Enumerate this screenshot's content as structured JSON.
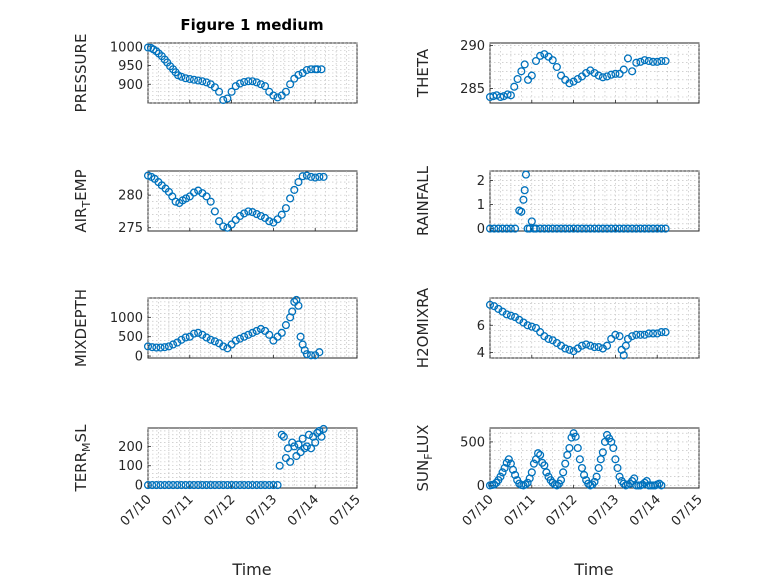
{
  "figure": {
    "title": "Figure 1 medium",
    "xlabel": "Time"
  },
  "colors": {
    "marker": "#0072BD",
    "axis": "#262626"
  },
  "chart_data": [
    {
      "type": "scatter",
      "id": "pressure",
      "ylabel": "PRESSURE",
      "xlim": [
        0,
        5
      ],
      "ylim": [
        850,
        1010
      ],
      "yticks": [
        900,
        950,
        1000
      ],
      "xtick_labels": [],
      "x": [
        0.0,
        0.07,
        0.13,
        0.2,
        0.26,
        0.33,
        0.4,
        0.46,
        0.53,
        0.6,
        0.66,
        0.72,
        0.8,
        0.9,
        1.0,
        1.1,
        1.2,
        1.3,
        1.4,
        1.5,
        1.6,
        1.7,
        1.8,
        1.9,
        2.0,
        2.1,
        2.2,
        2.3,
        2.4,
        2.5,
        2.6,
        2.7,
        2.8,
        2.9,
        3.0,
        3.1,
        3.2,
        3.3,
        3.4,
        3.5,
        3.6,
        3.7,
        3.8,
        3.9,
        4.0,
        4.05,
        4.15
      ],
      "y": [
        998,
        997,
        993,
        988,
        982,
        975,
        966,
        958,
        948,
        940,
        932,
        924,
        920,
        916,
        914,
        912,
        910,
        908,
        905,
        900,
        892,
        880,
        858,
        862,
        880,
        895,
        902,
        906,
        908,
        908,
        905,
        900,
        895,
        880,
        870,
        865,
        870,
        880,
        900,
        915,
        925,
        930,
        938,
        940,
        940,
        940,
        940
      ]
    },
    {
      "type": "scatter",
      "id": "theta",
      "ylabel": "THETA",
      "xlim": [
        0,
        5
      ],
      "ylim": [
        283.3,
        290.3
      ],
      "yticks": [
        285,
        290
      ],
      "xtick_labels": [],
      "x": [
        0.0,
        0.08,
        0.16,
        0.25,
        0.33,
        0.42,
        0.5,
        0.58,
        0.66,
        0.75,
        0.83,
        0.91,
        1.0,
        1.1,
        1.2,
        1.3,
        1.4,
        1.5,
        1.6,
        1.7,
        1.8,
        1.9,
        2.0,
        2.1,
        2.2,
        2.3,
        2.4,
        2.5,
        2.6,
        2.7,
        2.8,
        2.9,
        3.0,
        3.1,
        3.2,
        3.3,
        3.4,
        3.5,
        3.6,
        3.7,
        3.8,
        3.9,
        4.0,
        4.1,
        4.2
      ],
      "y": [
        284.0,
        284.1,
        284.2,
        284.0,
        284.1,
        284.3,
        284.2,
        285.2,
        286.1,
        287.0,
        287.8,
        286.0,
        286.5,
        288.2,
        288.8,
        289.0,
        288.7,
        288.3,
        287.5,
        286.5,
        286.0,
        285.6,
        285.8,
        286.1,
        286.4,
        286.8,
        287.1,
        286.8,
        286.5,
        286.3,
        286.4,
        286.6,
        286.7,
        286.7,
        287.2,
        288.5,
        287.0,
        288.0,
        288.1,
        288.3,
        288.2,
        288.1,
        288.1,
        288.2,
        288.2
      ]
    },
    {
      "type": "scatter",
      "id": "air_temp",
      "ylabel": "AIR",
      "ylabel_sub": "T",
      "ylabel_rest": "EMP",
      "xlim": [
        0,
        5
      ],
      "ylim": [
        274.5,
        283.7
      ],
      "yticks": [
        275,
        280
      ],
      "xtick_labels": [],
      "x": [
        0.0,
        0.08,
        0.16,
        0.25,
        0.33,
        0.42,
        0.5,
        0.58,
        0.66,
        0.75,
        0.83,
        0.91,
        1.0,
        1.1,
        1.2,
        1.3,
        1.4,
        1.5,
        1.6,
        1.7,
        1.8,
        1.9,
        2.0,
        2.1,
        2.2,
        2.3,
        2.4,
        2.5,
        2.6,
        2.7,
        2.8,
        2.9,
        3.0,
        3.1,
        3.2,
        3.3,
        3.4,
        3.5,
        3.6,
        3.7,
        3.8,
        3.9,
        4.0,
        4.1,
        4.2
      ],
      "y": [
        283.0,
        282.8,
        282.5,
        282.0,
        281.5,
        281.0,
        280.5,
        279.8,
        279.0,
        278.8,
        279.2,
        279.5,
        279.8,
        280.4,
        280.7,
        280.3,
        279.8,
        279.0,
        277.5,
        276.0,
        275.2,
        275.0,
        275.5,
        276.2,
        276.8,
        277.2,
        277.5,
        277.4,
        277.1,
        276.8,
        276.5,
        276.0,
        275.8,
        276.3,
        277.0,
        278.0,
        279.5,
        280.8,
        282.0,
        282.9,
        283.0,
        282.8,
        282.7,
        282.8,
        282.8
      ]
    },
    {
      "type": "scatter",
      "id": "rainfall",
      "ylabel": "RAINFALL",
      "xlim": [
        0,
        5
      ],
      "ylim": [
        -0.1,
        2.4
      ],
      "yticks": [
        0,
        1,
        2
      ],
      "xtick_labels": [],
      "x": [
        0.0,
        0.1,
        0.2,
        0.3,
        0.4,
        0.5,
        0.6,
        0.7,
        0.75,
        0.8,
        0.83,
        0.86,
        0.9,
        0.95,
        1.0,
        1.05,
        1.1,
        1.2,
        1.3,
        1.4,
        1.5,
        1.6,
        1.7,
        1.8,
        1.9,
        2.0,
        2.1,
        2.2,
        2.3,
        2.4,
        2.5,
        2.6,
        2.7,
        2.8,
        2.9,
        3.0,
        3.1,
        3.2,
        3.3,
        3.4,
        3.5,
        3.6,
        3.7,
        3.8,
        3.9,
        4.0,
        4.1,
        4.2
      ],
      "y": [
        0,
        0,
        0,
        0,
        0,
        0,
        0,
        0.75,
        0.7,
        1.2,
        1.6,
        2.25,
        0,
        0,
        0.3,
        0,
        0,
        0,
        0,
        0,
        0,
        0,
        0,
        0,
        0,
        0,
        0,
        0,
        0,
        0,
        0,
        0,
        0,
        0,
        0,
        0,
        0,
        0,
        0,
        0,
        0,
        0,
        0,
        0,
        0,
        0,
        0,
        0
      ]
    },
    {
      "type": "scatter",
      "id": "mixdepth",
      "ylabel": "MIXDEPTH",
      "xlim": [
        0,
        5
      ],
      "ylim": [
        -50,
        1500
      ],
      "yticks": [
        0,
        500,
        1000
      ],
      "xtick_labels": [],
      "x": [
        0.0,
        0.1,
        0.2,
        0.3,
        0.4,
        0.5,
        0.6,
        0.7,
        0.8,
        0.9,
        1.0,
        1.1,
        1.2,
        1.3,
        1.4,
        1.5,
        1.6,
        1.7,
        1.8,
        1.9,
        2.0,
        2.1,
        2.2,
        2.3,
        2.4,
        2.5,
        2.6,
        2.7,
        2.8,
        2.9,
        3.0,
        3.1,
        3.2,
        3.3,
        3.4,
        3.45,
        3.5,
        3.55,
        3.6,
        3.65,
        3.7,
        3.75,
        3.8,
        3.9,
        4.0,
        4.1
      ],
      "y": [
        250,
        230,
        220,
        220,
        230,
        250,
        300,
        350,
        420,
        480,
        500,
        580,
        600,
        550,
        480,
        420,
        380,
        330,
        250,
        200,
        300,
        400,
        450,
        500,
        550,
        600,
        650,
        700,
        650,
        550,
        400,
        500,
        600,
        800,
        1000,
        1150,
        1400,
        1450,
        1300,
        500,
        300,
        150,
        50,
        20,
        20,
        100
      ]
    },
    {
      "type": "scatter",
      "id": "h2omixra",
      "ylabel": "H2OMIXRA",
      "xlim": [
        0,
        5
      ],
      "ylim": [
        3.6,
        8.0
      ],
      "yticks": [
        4,
        6
      ],
      "xtick_labels": [],
      "x": [
        0.0,
        0.1,
        0.2,
        0.3,
        0.4,
        0.5,
        0.6,
        0.7,
        0.8,
        0.9,
        1.0,
        1.1,
        1.2,
        1.3,
        1.4,
        1.5,
        1.6,
        1.7,
        1.8,
        1.9,
        2.0,
        2.1,
        2.2,
        2.3,
        2.4,
        2.5,
        2.6,
        2.7,
        2.8,
        2.9,
        3.0,
        3.1,
        3.15,
        3.2,
        3.25,
        3.3,
        3.4,
        3.5,
        3.6,
        3.7,
        3.8,
        3.9,
        4.0,
        4.1,
        4.2
      ],
      "y": [
        7.5,
        7.4,
        7.2,
        7.0,
        6.8,
        6.7,
        6.6,
        6.4,
        6.2,
        6.0,
        5.9,
        5.8,
        5.5,
        5.2,
        5.0,
        4.9,
        4.7,
        4.5,
        4.3,
        4.2,
        4.1,
        4.3,
        4.5,
        4.6,
        4.5,
        4.4,
        4.4,
        4.3,
        4.5,
        5.0,
        5.3,
        5.2,
        4.2,
        3.8,
        4.5,
        5.0,
        5.2,
        5.3,
        5.3,
        5.3,
        5.4,
        5.4,
        5.4,
        5.5,
        5.5
      ]
    },
    {
      "type": "scatter",
      "id": "terr_msl",
      "ylabel": "TERR",
      "ylabel_sub": "M",
      "ylabel_rest": "SL",
      "xlim": [
        0,
        5
      ],
      "ylim": [
        -15,
        295
      ],
      "yticks": [
        0,
        100,
        200
      ],
      "xtick_values": [
        0,
        1,
        2,
        3,
        4,
        5
      ],
      "xtick_labels": [
        "07/10",
        "07/11",
        "07/12",
        "07/13",
        "07/14",
        "07/15"
      ],
      "x": [
        0.0,
        0.1,
        0.2,
        0.3,
        0.4,
        0.5,
        0.6,
        0.7,
        0.8,
        0.9,
        1.0,
        1.1,
        1.2,
        1.3,
        1.4,
        1.5,
        1.6,
        1.7,
        1.8,
        1.9,
        2.0,
        2.1,
        2.2,
        2.3,
        2.4,
        2.5,
        2.6,
        2.7,
        2.8,
        2.9,
        3.0,
        3.1,
        3.15,
        3.2,
        3.25,
        3.3,
        3.35,
        3.4,
        3.45,
        3.5,
        3.55,
        3.6,
        3.65,
        3.7,
        3.75,
        3.8,
        3.85,
        3.9,
        3.95,
        4.0,
        4.05,
        4.1,
        4.15,
        4.2
      ],
      "y": [
        0,
        0,
        0,
        0,
        0,
        0,
        0,
        0,
        0,
        0,
        0,
        0,
        0,
        0,
        0,
        0,
        0,
        0,
        0,
        0,
        0,
        0,
        0,
        0,
        0,
        0,
        0,
        0,
        0,
        0,
        0,
        0,
        100,
        260,
        250,
        140,
        190,
        120,
        220,
        200,
        150,
        210,
        170,
        240,
        190,
        200,
        260,
        190,
        250,
        220,
        270,
        280,
        250,
        290
      ]
    },
    {
      "type": "scatter",
      "id": "sun_flux",
      "ylabel": "SUN",
      "ylabel_sub": "F",
      "ylabel_rest": "LUX",
      "xlim": [
        0,
        5
      ],
      "ylim": [
        -30,
        660
      ],
      "yticks": [
        0,
        500
      ],
      "xtick_values": [
        0,
        1,
        2,
        3,
        4,
        5
      ],
      "xtick_labels": [
        "07/10",
        "07/11",
        "07/12",
        "07/13",
        "07/14",
        "07/15"
      ],
      "x": [
        0.0,
        0.05,
        0.1,
        0.15,
        0.2,
        0.25,
        0.3,
        0.35,
        0.4,
        0.45,
        0.5,
        0.55,
        0.6,
        0.65,
        0.7,
        0.75,
        0.8,
        0.85,
        0.9,
        0.95,
        1.0,
        1.05,
        1.1,
        1.15,
        1.2,
        1.25,
        1.3,
        1.35,
        1.4,
        1.45,
        1.5,
        1.55,
        1.6,
        1.65,
        1.7,
        1.75,
        1.8,
        1.85,
        1.9,
        1.95,
        2.0,
        2.05,
        2.1,
        2.15,
        2.2,
        2.25,
        2.3,
        2.35,
        2.4,
        2.45,
        2.5,
        2.55,
        2.6,
        2.65,
        2.7,
        2.75,
        2.8,
        2.85,
        2.9,
        2.95,
        3.0,
        3.05,
        3.1,
        3.15,
        3.2,
        3.25,
        3.3,
        3.35,
        3.4,
        3.45,
        3.5,
        3.55,
        3.6,
        3.65,
        3.7,
        3.75,
        3.8,
        3.85,
        3.9,
        3.95,
        4.0,
        4.05,
        4.1
      ],
      "y": [
        0,
        5,
        10,
        30,
        60,
        100,
        150,
        200,
        260,
        300,
        250,
        180,
        120,
        60,
        20,
        5,
        0,
        10,
        30,
        80,
        150,
        250,
        300,
        370,
        350,
        260,
        230,
        150,
        100,
        60,
        30,
        10,
        0,
        20,
        60,
        150,
        250,
        350,
        430,
        550,
        600,
        560,
        430,
        300,
        200,
        120,
        60,
        20,
        0,
        10,
        40,
        100,
        200,
        300,
        380,
        500,
        580,
        540,
        500,
        430,
        300,
        200,
        100,
        50,
        20,
        0,
        10,
        20,
        50,
        80,
        0,
        0,
        0,
        10,
        30,
        50,
        0,
        0,
        0,
        0,
        10,
        20,
        0
      ]
    }
  ]
}
